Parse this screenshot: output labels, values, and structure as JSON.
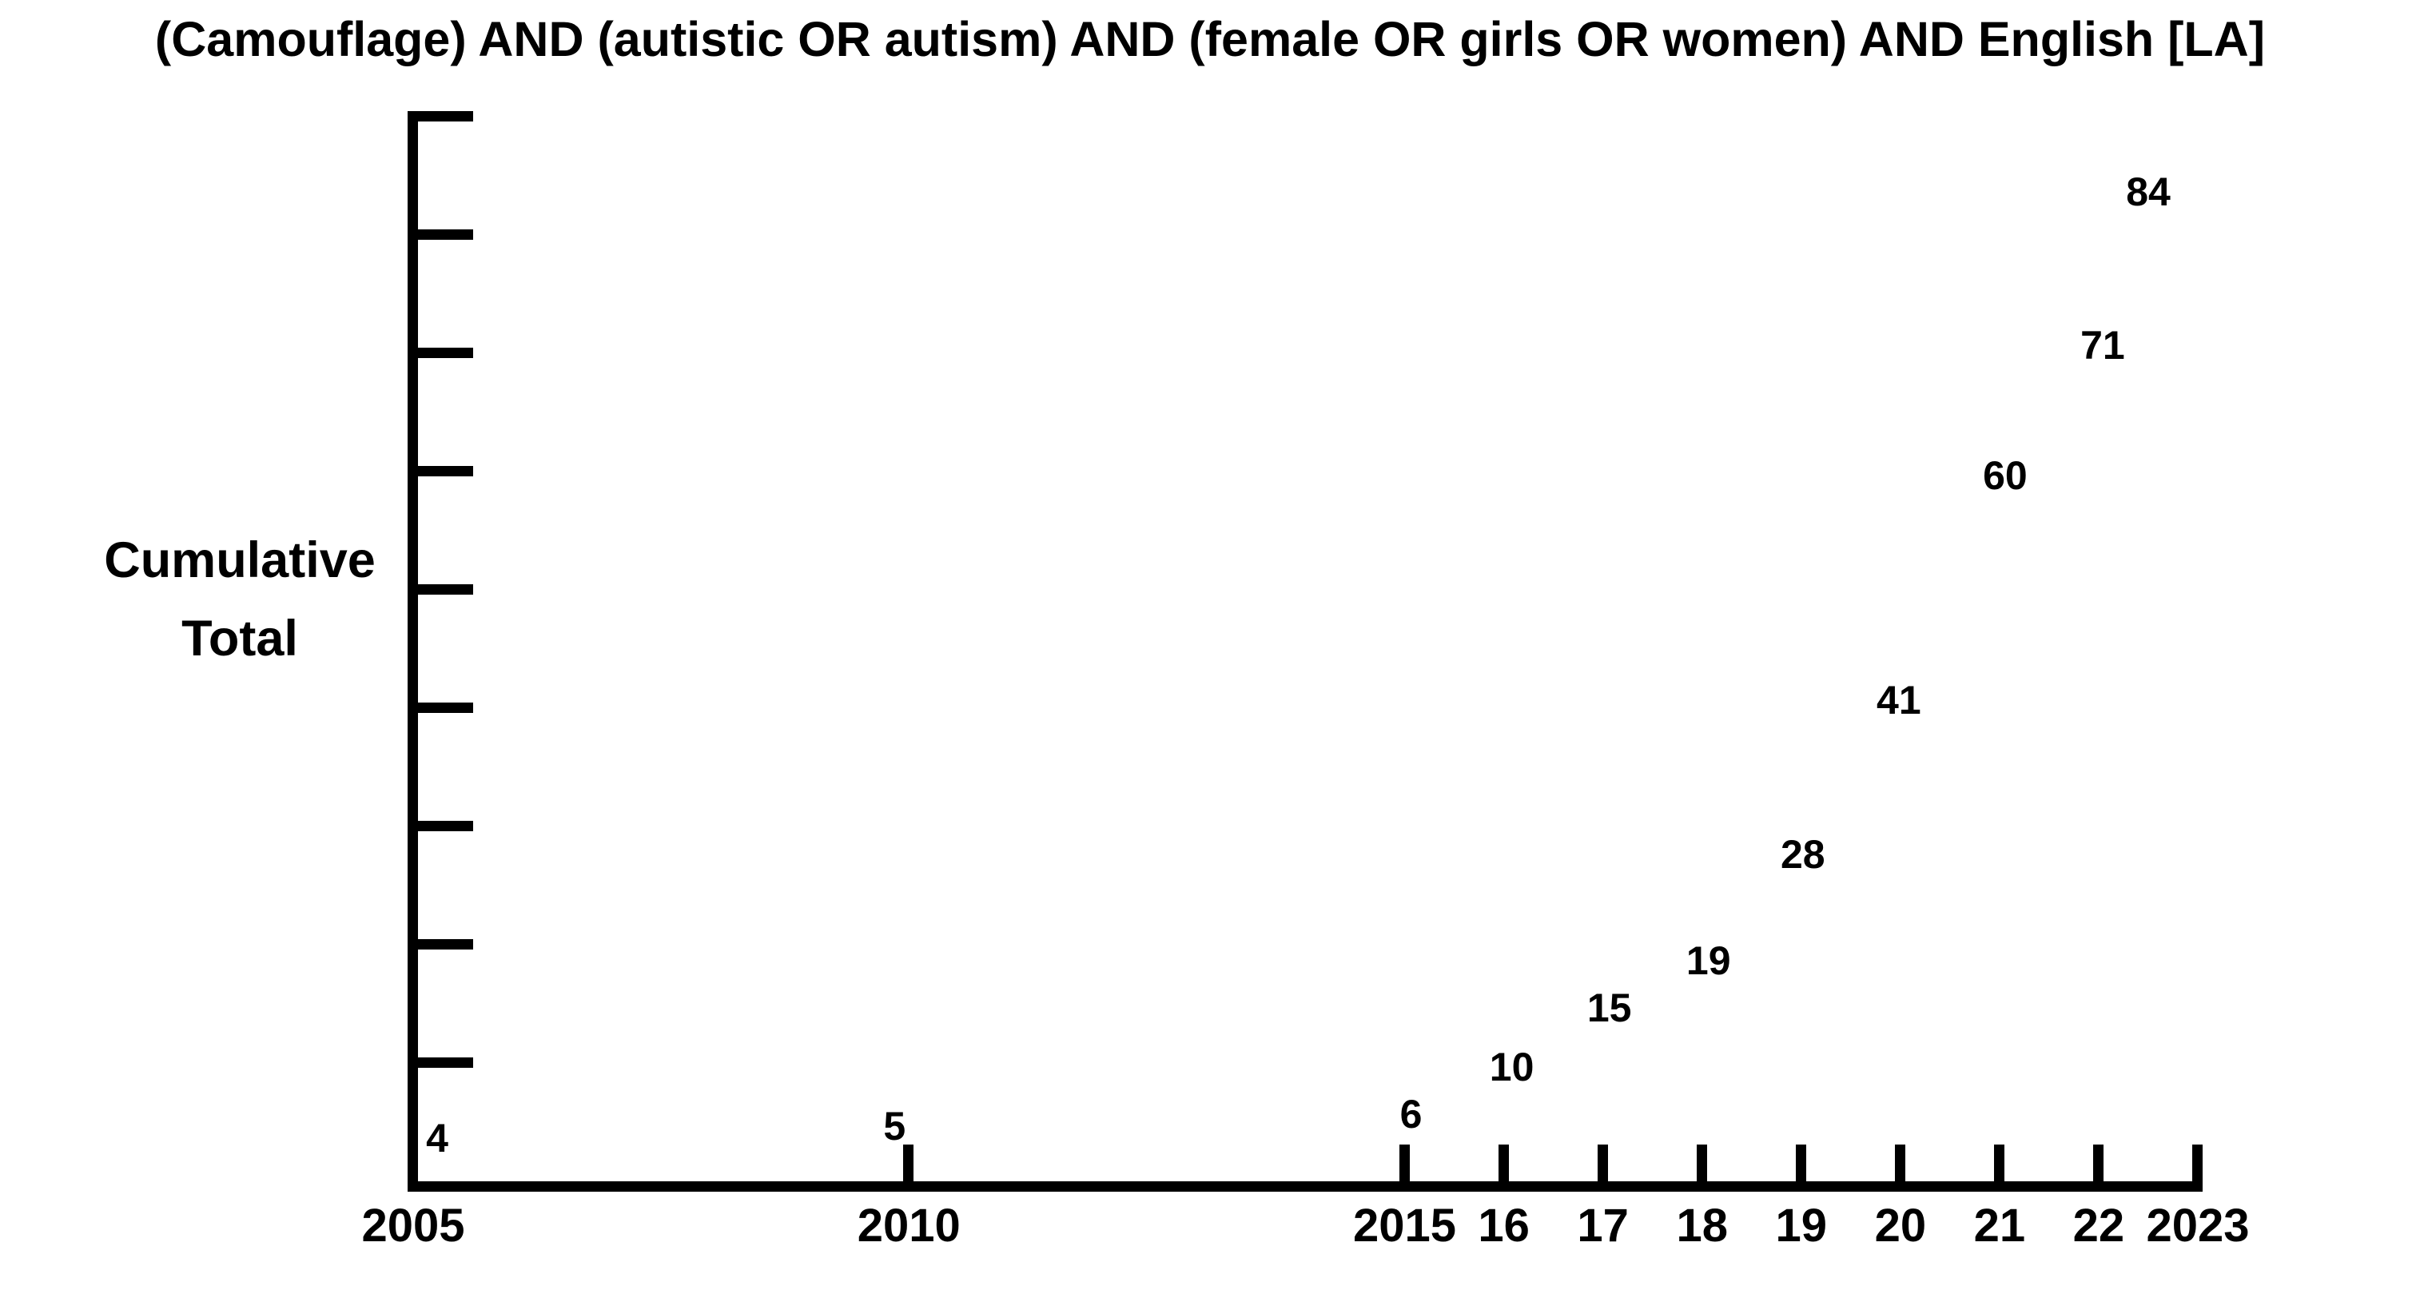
{
  "chart_data": {
    "type": "scatter",
    "title": "(Camouflage) AND (autistic OR autism) AND (female OR girls OR women) AND English [LA]",
    "xlabel": "",
    "ylabel": "Cumulative Total",
    "ylabel_lines": [
      "Cumulative",
      "Total"
    ],
    "xlim": [
      2005,
      2023
    ],
    "ylim": [
      0,
      90
    ],
    "grid": false,
    "legend": false,
    "marker_style": "numeric value printed at each point",
    "ink_color": "#000000",
    "background_color": "#ffffff",
    "points": [
      {
        "year": 2005,
        "cumulative_total": 4,
        "label": "4",
        "label_dx": 30
      },
      {
        "year": 2010,
        "cumulative_total": 5,
        "label": "5",
        "label_dx": -18
      },
      {
        "year": 2015,
        "cumulative_total": 6,
        "label": "6",
        "label_dx": 8
      },
      {
        "year": 2016,
        "cumulative_total": 10,
        "label": "10",
        "label_dx": 10
      },
      {
        "year": 2017,
        "cumulative_total": 15,
        "label": "15",
        "label_dx": 8
      },
      {
        "year": 2018,
        "cumulative_total": 19,
        "label": "19",
        "label_dx": 8
      },
      {
        "year": 2019,
        "cumulative_total": 28,
        "label": "28",
        "label_dx": 2
      },
      {
        "year": 2020,
        "cumulative_total": 41,
        "label": "41",
        "label_dx": -2
      },
      {
        "year": 2021,
        "cumulative_total": 60,
        "label": "60",
        "label_dx": 7
      },
      {
        "year": 2022,
        "cumulative_total": 71,
        "label": "71",
        "label_dx": 5
      },
      {
        "year": 2023,
        "cumulative_total": 84,
        "label": "84",
        "label_dx": -62
      }
    ],
    "x_tick_years": [
      2010,
      2015,
      2016,
      2017,
      2018,
      2019,
      2020,
      2021,
      2022,
      2023
    ],
    "x_tick_labels": [
      {
        "text": "2005",
        "year": 2005
      },
      {
        "text": "2010",
        "year": 2010
      },
      {
        "text": "2015",
        "year": 2015
      },
      {
        "text": "16",
        "year": 2016
      },
      {
        "text": "17",
        "year": 2017
      },
      {
        "text": "18",
        "year": 2018
      },
      {
        "text": "19",
        "year": 2019
      },
      {
        "text": "20",
        "year": 2020
      },
      {
        "text": "21",
        "year": 2021
      },
      {
        "text": "22",
        "year": 2022
      },
      {
        "text": "2023",
        "year": 2023
      }
    ],
    "y_tick_values": [
      10,
      20,
      30,
      40,
      50,
      60,
      70,
      80,
      90
    ]
  }
}
